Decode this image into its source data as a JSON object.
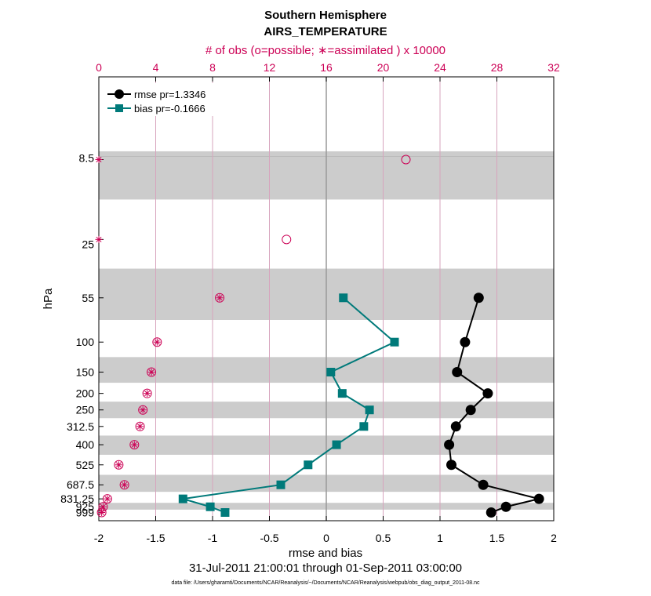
{
  "chart_data": {
    "type": "line",
    "title": "Southern Hemisphere",
    "subtitle": "AIRS_TEMPERATURE",
    "top_axis_label": "# of obs (o=possible; ∗=assimilated ) x 10000",
    "xlabel": "rmse and bias",
    "ylabel": "hPa",
    "date_range": "31-Jul-2011 21:00:01 through 01-Sep-2011 03:00:00",
    "footnote": "data file: /Users/gharamti/Documents/NCAR/Reanalysis/~/Documents/NCAR/Reanalysis/webpub/obs_diag_output_2011-08.nc",
    "xlim": [
      -2,
      2
    ],
    "x_ticks": [
      "-2",
      "-1.5",
      "-1",
      "-0.5",
      "0",
      "0.5",
      "1",
      "1.5",
      "2"
    ],
    "top_xlim": [
      0,
      32
    ],
    "top_ticks": [
      "0",
      "4",
      "8",
      "12",
      "16",
      "20",
      "24",
      "28",
      "32"
    ],
    "levels": [
      8.5,
      25,
      55,
      100,
      150,
      200,
      250,
      312.5,
      400,
      525,
      687.5,
      831.25,
      925,
      999
    ],
    "level_labels": [
      "8.5",
      "25",
      "55",
      "100",
      "150",
      "200",
      "250",
      "312.5",
      "400",
      "525",
      "687.5",
      "831.25",
      "925",
      "999"
    ],
    "series": [
      {
        "name": "rmse pr=1.3346",
        "color": "#000000",
        "levels": [
          55,
          100,
          150,
          200,
          250,
          312.5,
          400,
          525,
          687.5,
          831.25,
          925,
          999
        ],
        "values": [
          1.34,
          1.22,
          1.15,
          1.42,
          1.27,
          1.14,
          1.08,
          1.1,
          1.38,
          1.87,
          1.58,
          1.45
        ]
      },
      {
        "name": "bias pr=-0.1666",
        "color": "#007a7a",
        "levels": [
          55,
          100,
          150,
          200,
          250,
          312.5,
          400,
          525,
          687.5,
          831.25,
          925,
          999
        ],
        "values": [
          0.15,
          0.6,
          0.04,
          0.14,
          0.38,
          0.33,
          0.09,
          -0.16,
          -0.4,
          -1.26,
          -1.02,
          -0.89
        ]
      }
    ],
    "obs_possible": {
      "levels": [
        8.5,
        25,
        55,
        100,
        150,
        200,
        250,
        312.5,
        400,
        525,
        687.5,
        831.25,
        925,
        999
      ],
      "values": [
        21.6,
        13.2,
        8.5,
        4.1,
        3.7,
        3.4,
        3.1,
        2.9,
        2.5,
        1.4,
        1.8,
        0.6,
        0.3,
        0.2
      ]
    },
    "obs_assimilated": {
      "levels": [
        8.5,
        25,
        55,
        100,
        150,
        200,
        250,
        312.5,
        400,
        525,
        687.5,
        831.25,
        925,
        999
      ],
      "values": [
        0.0,
        0.0,
        8.5,
        4.1,
        3.7,
        3.4,
        3.1,
        2.9,
        2.5,
        1.4,
        1.8,
        0.6,
        0.3,
        0.2
      ]
    },
    "legend_position": "top-left"
  }
}
